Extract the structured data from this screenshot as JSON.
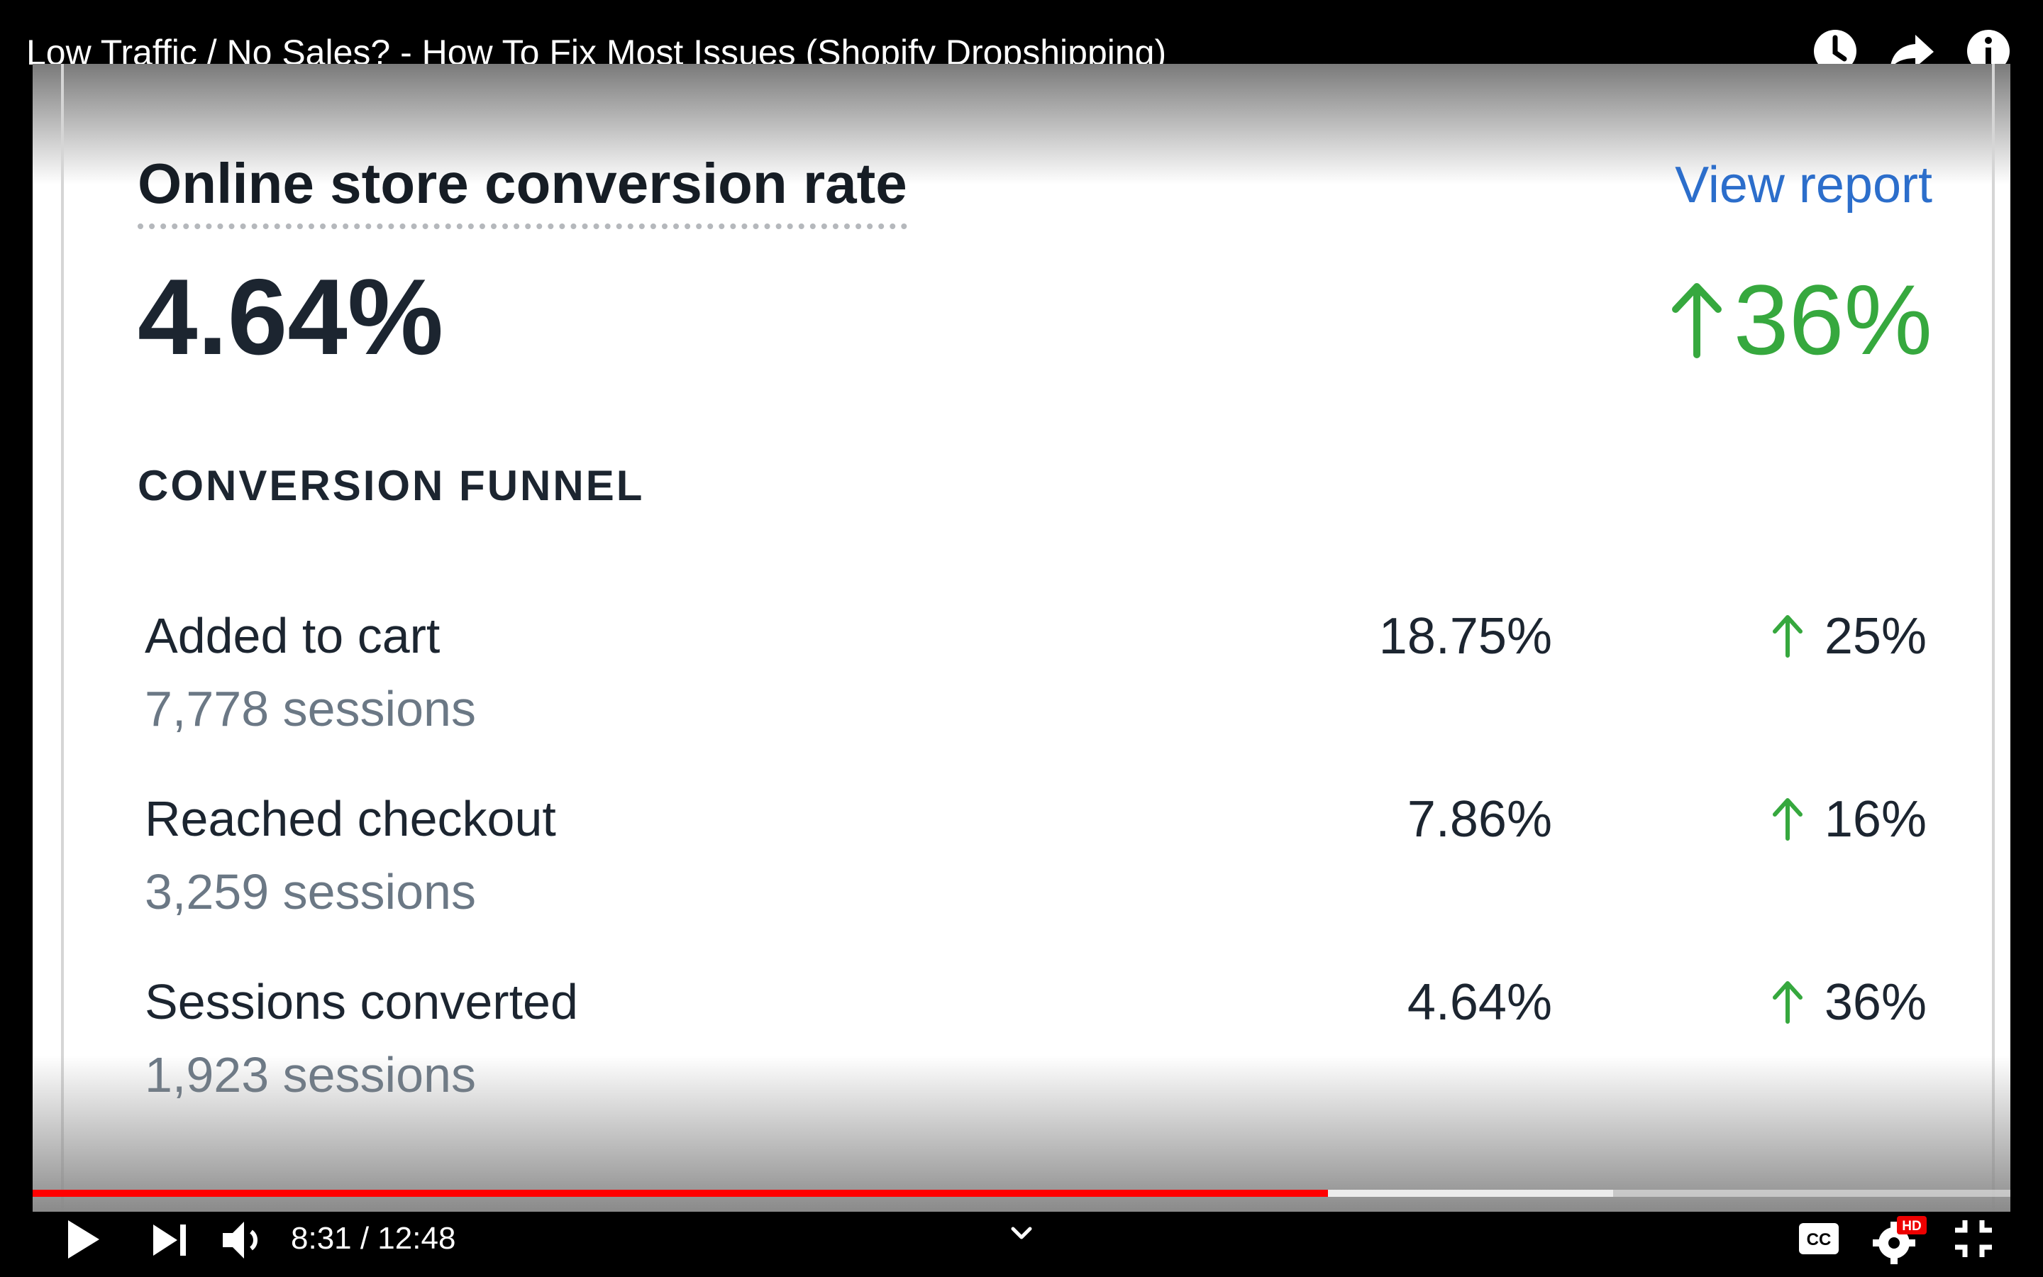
{
  "video": {
    "title": "Low Traffic / No Sales? - How To Fix Most Issues (Shopify Dropshipping)",
    "time_current": "8:31",
    "time_total": "12:48",
    "time_display": "8:31 / 12:48",
    "progress_played": 0.655,
    "progress_buffered": 0.799,
    "quality_badge": "HD",
    "cc_label": "CC"
  },
  "card": {
    "title": "Online store conversion rate",
    "view_report": "View report",
    "value": "4.64%",
    "change": "36%",
    "section_label": "CONVERSION FUNNEL",
    "funnel": [
      {
        "label": "Added to cart",
        "sessions": "7,778 sessions",
        "rate": "18.75%",
        "change": "25%"
      },
      {
        "label": "Reached checkout",
        "sessions": "3,259 sessions",
        "rate": "7.86%",
        "change": "16%"
      },
      {
        "label": "Sessions converted",
        "sessions": "1,923 sessions",
        "rate": "4.64%",
        "change": "36%"
      }
    ]
  },
  "colors": {
    "positive": "#36a83e",
    "link": "#2c6ecb",
    "progress": "#ff0000"
  },
  "icons": {
    "watch_later": "clock-icon",
    "share": "share-icon",
    "info": "info-icon",
    "play": "play-icon",
    "next": "next-icon",
    "volume": "volume-icon",
    "chevron": "chevron-down-icon",
    "captions": "captions-icon",
    "settings": "gear-icon",
    "exit_fullscreen": "exit-fullscreen-icon"
  }
}
